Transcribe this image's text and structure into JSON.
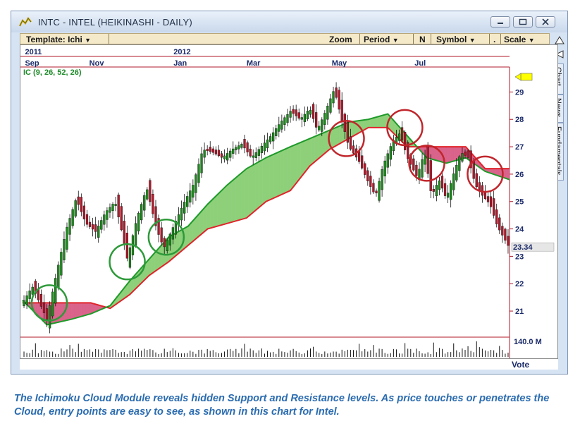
{
  "window": {
    "title": "INTC - INTEL (HEIKINASHI - DAILY)",
    "buttons": [
      "minimize",
      "maximize",
      "close"
    ]
  },
  "toolbar": {
    "template_label": "Template: Ichi",
    "zoom_label": "Zoom",
    "period_label": "Period",
    "n_label": "N",
    "symbol_label": "Symbol",
    "dot_label": ".",
    "scale_label": "Scale"
  },
  "side_tabs": {
    "chart": "Chart",
    "news": "News",
    "fundamentals": "Fundamentals"
  },
  "indicator_label": "IC (9, 26, 52, 26)",
  "current_price_label": "23.34",
  "volume_label": "140.0 M",
  "vote_label": "Vote",
  "caption": "The Ichimoku Cloud Module reveals hidden Support and Resistance levels.  As price touches or penetrates the Cloud, entry points are easy to see, as shown in this chart for Intel.",
  "colors": {
    "bull_candle": "#1a8a1a",
    "bear_candle": "#b0182a",
    "cloud_bull": "#8ed07a",
    "cloud_bear": "#d9638a",
    "span_a": "#1f9a2a",
    "span_b": "#e0242b",
    "circle_green": "#2e9a3a",
    "circle_red": "#c0262c",
    "price_marker": "#ffff00"
  },
  "chart_data": {
    "type": "candlestick",
    "title": "INTC - INTEL (HEIKINASHI - DAILY)",
    "x_axis": {
      "year_labels": [
        "2011",
        "2012"
      ],
      "month_labels": [
        "Sep",
        "Nov",
        "Jan",
        "Mar",
        "May",
        "Jul"
      ]
    },
    "y_axis": {
      "ylim": [
        20.1,
        29.5
      ],
      "ticks": [
        21,
        22,
        23,
        24,
        25,
        26,
        27,
        28,
        29
      ],
      "current_price": 23.34
    },
    "price_path": [
      {
        "x": 0.0,
        "y": 21.3
      },
      {
        "x": 0.02,
        "y": 21.9
      },
      {
        "x": 0.04,
        "y": 21.1
      },
      {
        "x": 0.05,
        "y": 20.7
      },
      {
        "x": 0.07,
        "y": 22.4
      },
      {
        "x": 0.09,
        "y": 24.0
      },
      {
        "x": 0.11,
        "y": 25.1
      },
      {
        "x": 0.13,
        "y": 24.2
      },
      {
        "x": 0.15,
        "y": 23.9
      },
      {
        "x": 0.17,
        "y": 24.6
      },
      {
        "x": 0.19,
        "y": 25.0
      },
      {
        "x": 0.205,
        "y": 23.8
      },
      {
        "x": 0.215,
        "y": 22.9
      },
      {
        "x": 0.235,
        "y": 24.4
      },
      {
        "x": 0.255,
        "y": 25.5
      },
      {
        "x": 0.275,
        "y": 24.0
      },
      {
        "x": 0.29,
        "y": 23.3
      },
      {
        "x": 0.31,
        "y": 24.1
      },
      {
        "x": 0.33,
        "y": 24.9
      },
      {
        "x": 0.35,
        "y": 25.6
      },
      {
        "x": 0.37,
        "y": 26.9
      },
      {
        "x": 0.39,
        "y": 26.8
      },
      {
        "x": 0.41,
        "y": 26.6
      },
      {
        "x": 0.43,
        "y": 26.9
      },
      {
        "x": 0.45,
        "y": 27.1
      },
      {
        "x": 0.47,
        "y": 26.6
      },
      {
        "x": 0.49,
        "y": 27.0
      },
      {
        "x": 0.51,
        "y": 27.4
      },
      {
        "x": 0.53,
        "y": 27.9
      },
      {
        "x": 0.55,
        "y": 28.3
      },
      {
        "x": 0.57,
        "y": 28.0
      },
      {
        "x": 0.59,
        "y": 28.4
      },
      {
        "x": 0.605,
        "y": 27.6
      },
      {
        "x": 0.62,
        "y": 28.2
      },
      {
        "x": 0.64,
        "y": 29.1
      },
      {
        "x": 0.655,
        "y": 28.0
      },
      {
        "x": 0.67,
        "y": 27.0
      },
      {
        "x": 0.69,
        "y": 26.5
      },
      {
        "x": 0.71,
        "y": 25.7
      },
      {
        "x": 0.725,
        "y": 25.2
      },
      {
        "x": 0.74,
        "y": 26.3
      },
      {
        "x": 0.76,
        "y": 27.2
      },
      {
        "x": 0.775,
        "y": 27.5
      },
      {
        "x": 0.79,
        "y": 26.6
      },
      {
        "x": 0.81,
        "y": 25.9
      },
      {
        "x": 0.825,
        "y": 26.8
      },
      {
        "x": 0.84,
        "y": 25.2
      },
      {
        "x": 0.855,
        "y": 25.8
      },
      {
        "x": 0.87,
        "y": 25.1
      },
      {
        "x": 0.885,
        "y": 26.0
      },
      {
        "x": 0.9,
        "y": 26.8
      },
      {
        "x": 0.915,
        "y": 26.6
      },
      {
        "x": 0.93,
        "y": 25.6
      },
      {
        "x": 0.945,
        "y": 25.2
      },
      {
        "x": 0.96,
        "y": 24.9
      },
      {
        "x": 0.975,
        "y": 24.1
      },
      {
        "x": 1.0,
        "y": 23.3
      }
    ],
    "span_a": [
      {
        "x": 0.0,
        "y": 21.4
      },
      {
        "x": 0.05,
        "y": 20.5
      },
      {
        "x": 0.1,
        "y": 20.7
      },
      {
        "x": 0.14,
        "y": 20.9
      },
      {
        "x": 0.18,
        "y": 21.2
      },
      {
        "x": 0.22,
        "y": 22.1
      },
      {
        "x": 0.26,
        "y": 22.9
      },
      {
        "x": 0.3,
        "y": 23.7
      },
      {
        "x": 0.34,
        "y": 24.1
      },
      {
        "x": 0.38,
        "y": 24.9
      },
      {
        "x": 0.42,
        "y": 25.6
      },
      {
        "x": 0.46,
        "y": 26.2
      },
      {
        "x": 0.5,
        "y": 26.6
      },
      {
        "x": 0.55,
        "y": 27.0
      },
      {
        "x": 0.59,
        "y": 27.3
      },
      {
        "x": 0.63,
        "y": 27.6
      },
      {
        "x": 0.67,
        "y": 27.9
      },
      {
        "x": 0.71,
        "y": 28.0
      },
      {
        "x": 0.75,
        "y": 28.2
      },
      {
        "x": 0.79,
        "y": 27.4
      },
      {
        "x": 0.83,
        "y": 26.6
      },
      {
        "x": 0.87,
        "y": 26.4
      },
      {
        "x": 0.91,
        "y": 26.6
      },
      {
        "x": 0.95,
        "y": 26.1
      },
      {
        "x": 1.0,
        "y": 25.8
      }
    ],
    "span_b": [
      {
        "x": 0.0,
        "y": 21.3
      },
      {
        "x": 0.05,
        "y": 21.3
      },
      {
        "x": 0.1,
        "y": 21.3
      },
      {
        "x": 0.14,
        "y": 21.3
      },
      {
        "x": 0.18,
        "y": 21.1
      },
      {
        "x": 0.22,
        "y": 21.6
      },
      {
        "x": 0.26,
        "y": 22.3
      },
      {
        "x": 0.3,
        "y": 22.8
      },
      {
        "x": 0.34,
        "y": 23.4
      },
      {
        "x": 0.38,
        "y": 24.0
      },
      {
        "x": 0.42,
        "y": 24.2
      },
      {
        "x": 0.46,
        "y": 24.4
      },
      {
        "x": 0.5,
        "y": 25.0
      },
      {
        "x": 0.55,
        "y": 25.4
      },
      {
        "x": 0.59,
        "y": 26.3
      },
      {
        "x": 0.63,
        "y": 26.9
      },
      {
        "x": 0.67,
        "y": 27.3
      },
      {
        "x": 0.71,
        "y": 27.7
      },
      {
        "x": 0.75,
        "y": 27.7
      },
      {
        "x": 0.79,
        "y": 27.0
      },
      {
        "x": 0.83,
        "y": 27.0
      },
      {
        "x": 0.87,
        "y": 27.0
      },
      {
        "x": 0.91,
        "y": 27.0
      },
      {
        "x": 0.95,
        "y": 26.2
      },
      {
        "x": 1.0,
        "y": 26.2
      }
    ],
    "highlight_circles": [
      {
        "x": 0.055,
        "y": 21.3,
        "signal": "bullish"
      },
      {
        "x": 0.215,
        "y": 22.8,
        "signal": "bullish"
      },
      {
        "x": 0.295,
        "y": 23.7,
        "signal": "bullish"
      },
      {
        "x": 0.665,
        "y": 27.3,
        "signal": "bearish"
      },
      {
        "x": 0.785,
        "y": 27.7,
        "signal": "bearish"
      },
      {
        "x": 0.83,
        "y": 26.4,
        "signal": "bearish"
      },
      {
        "x": 0.95,
        "y": 26.0,
        "signal": "bearish"
      }
    ],
    "volume_axis_label": "140.0 M"
  }
}
